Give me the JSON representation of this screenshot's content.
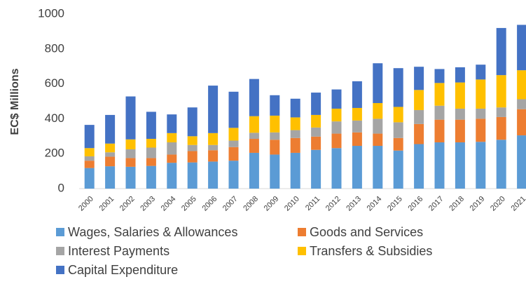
{
  "chart_data": {
    "type": "stacked_bar",
    "y_label": "EC$ Millions",
    "categories": [
      "2000",
      "2001",
      "2002",
      "2003",
      "2004",
      "2005",
      "2006",
      "2007",
      "2008",
      "2009",
      "2010",
      "2011",
      "2012",
      "2013",
      "2014",
      "2015",
      "2016",
      "2017",
      "2018",
      "2019",
      "2020",
      "2021"
    ],
    "series": [
      {
        "name": "Wages, Salaries & Allowances",
        "color": "#5b9bd5",
        "values": [
          118,
          128,
          125,
          130,
          148,
          150,
          155,
          160,
          205,
          195,
          205,
          222,
          232,
          245,
          245,
          218,
          255,
          265,
          265,
          268,
          280,
          305
        ]
      },
      {
        "name": "Goods and Services",
        "color": "#ed7d31",
        "values": [
          42,
          55,
          50,
          45,
          47,
          65,
          65,
          78,
          80,
          85,
          85,
          76,
          83,
          77,
          70,
          72,
          115,
          130,
          130,
          132,
          130,
          150
        ]
      },
      {
        "name": "Interest Payments",
        "color": "#a5a5a5",
        "values": [
          25,
          25,
          50,
          60,
          70,
          35,
          30,
          37,
          35,
          42,
          45,
          52,
          70,
          68,
          85,
          90,
          80,
          80,
          63,
          58,
          55,
          57
        ]
      },
      {
        "name": "Transfers & Subsidies",
        "color": "#ffc000",
        "values": [
          47,
          50,
          57,
          50,
          53,
          50,
          68,
          73,
          95,
          96,
          73,
          72,
          73,
          72,
          90,
          88,
          115,
          130,
          150,
          167,
          185,
          166
        ]
      },
      {
        "name": "Capital Expenditure",
        "color": "#4472c4",
        "values": [
          133,
          164,
          246,
          155,
          107,
          165,
          272,
          207,
          213,
          117,
          107,
          128,
          110,
          153,
          228,
          222,
          133,
          80,
          87,
          85,
          270,
          260
        ]
      }
    ],
    "ylim": [
      0,
      1000
    ],
    "yticks": [
      0,
      200,
      400,
      600,
      800,
      1000
    ],
    "grid": false,
    "legend": "bottom"
  }
}
